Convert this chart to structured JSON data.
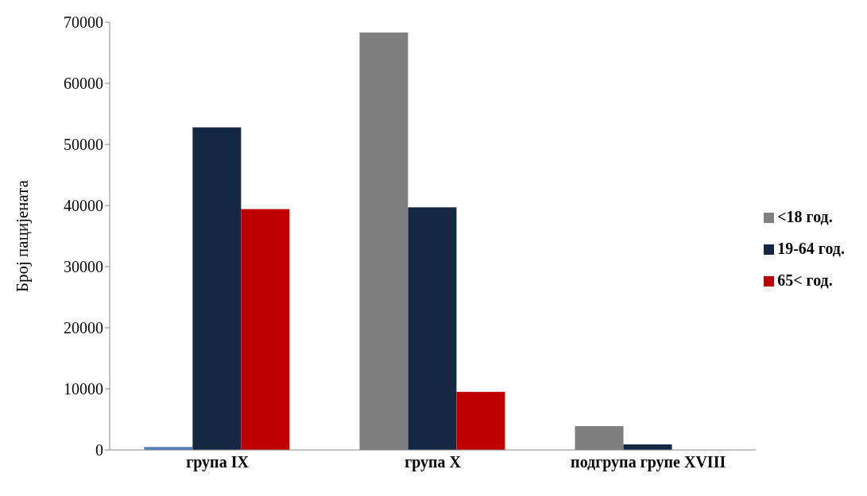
{
  "chart_data": {
    "type": "bar",
    "ylabel": "Број пацијената",
    "categories": [
      "група IX",
      "група X",
      "подгрупа групе XVIII"
    ],
    "series": [
      {
        "name": "<18 год.",
        "color": "#7f7f7f",
        "colors": [
          "#4f81bd",
          "#7f7f7f",
          "#7f7f7f"
        ],
        "values": [
          500,
          68300,
          3900
        ]
      },
      {
        "name": "19-64 год.",
        "color": "#142743",
        "values": [
          52800,
          39700,
          900
        ]
      },
      {
        "name": "65< год.",
        "color": "#c00000",
        "values": [
          39400,
          9500,
          0
        ]
      }
    ],
    "ylim": [
      0,
      70000
    ],
    "yticks": [
      0,
      10000,
      20000,
      30000,
      40000,
      50000,
      60000,
      70000
    ],
    "grid": false,
    "legend": "right"
  }
}
